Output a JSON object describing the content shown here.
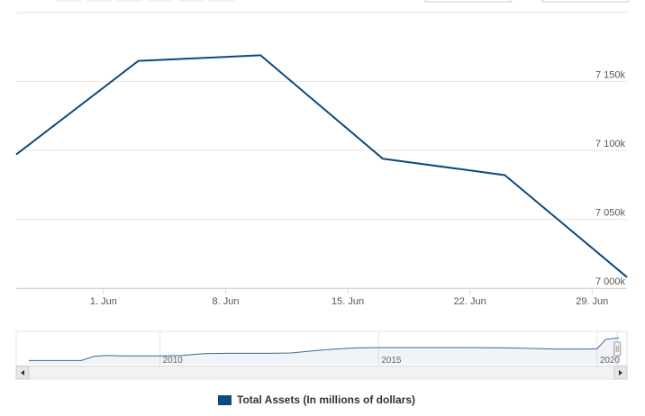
{
  "chart_data": {
    "type": "line",
    "series": [
      {
        "name": "Total Assets (In millions of dollars)",
        "x": [
          "2020-05-27",
          "2020-06-03",
          "2020-06-10",
          "2020-06-17",
          "2020-06-24",
          "2020-07-01"
        ],
        "values": [
          7097,
          7165,
          7169,
          7094,
          7082,
          7008
        ]
      }
    ],
    "x_ticks": [
      {
        "x": "2020-06-01",
        "label": "1. Jun"
      },
      {
        "x": "2020-06-08",
        "label": "8. Jun"
      },
      {
        "x": "2020-06-15",
        "label": "15. Jun"
      },
      {
        "x": "2020-06-22",
        "label": "22. Jun"
      },
      {
        "x": "2020-06-29",
        "label": "29. Jun"
      }
    ],
    "y_ticks": [
      {
        "value": 7000,
        "label": "7 000k"
      },
      {
        "value": 7050,
        "label": "7 050k"
      },
      {
        "value": 7100,
        "label": "7 100k"
      },
      {
        "value": 7150,
        "label": "7 150k"
      }
    ],
    "xlim": [
      "2020-05-27",
      "2020-07-01"
    ],
    "ylim": [
      7000,
      7200
    ],
    "grid": true,
    "legend_position": "bottom-center",
    "line_color": "#0d4a7d",
    "navigator": {
      "labels": [
        "2010",
        "2015",
        "2020"
      ],
      "x": [
        2007.0,
        2008.2,
        2008.5,
        2008.8,
        2009.2,
        2009.6,
        2010.0,
        2010.5,
        2011.0,
        2011.5,
        2012.0,
        2012.5,
        2013.0,
        2013.5,
        2014.0,
        2014.5,
        2015.0,
        2016.0,
        2017.0,
        2018.0,
        2019.0,
        2019.6,
        2019.8,
        2020.0,
        2020.2,
        2020.5
      ],
      "values": [
        0.9,
        0.9,
        2.1,
        2.3,
        2.2,
        2.2,
        2.2,
        2.3,
        2.8,
        2.9,
        2.9,
        2.9,
        3.0,
        3.6,
        4.1,
        4.4,
        4.5,
        4.5,
        4.5,
        4.4,
        4.1,
        4.1,
        4.1,
        4.2,
        6.8,
        7.2
      ],
      "ylim": [
        0,
        8
      ],
      "xlim": [
        2007.0,
        2020.6
      ]
    }
  }
}
